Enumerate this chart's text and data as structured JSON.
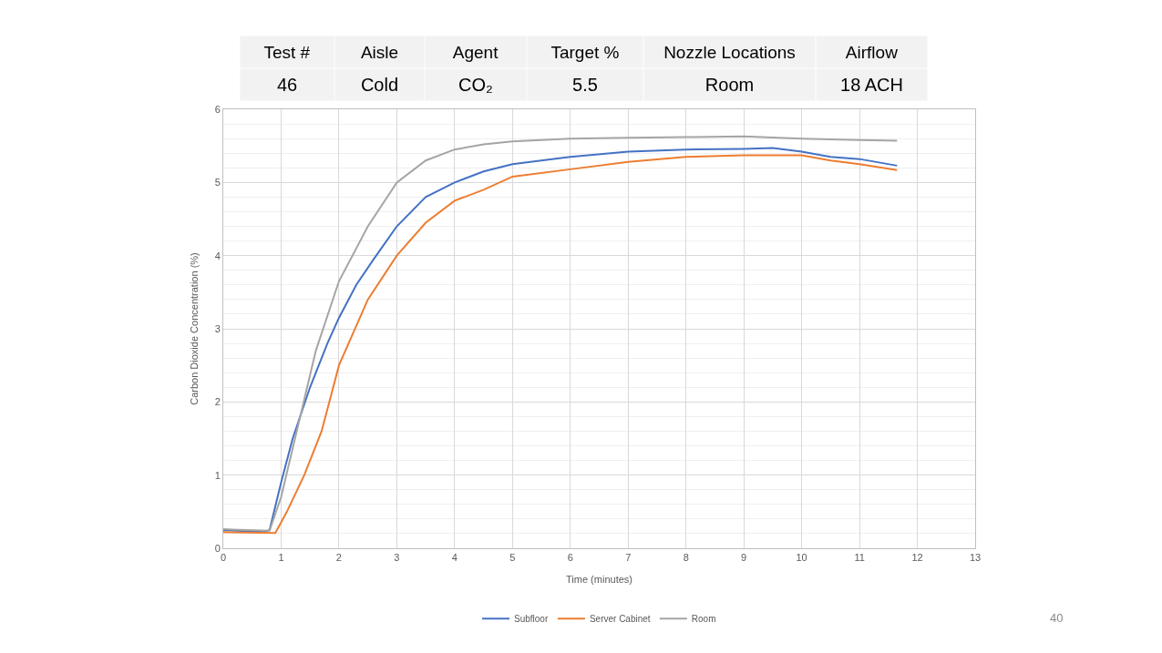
{
  "chart_data": {
    "type": "line",
    "xlabel": "Time (minutes)",
    "ylabel": "Carbon Dioxide Concentration (%)",
    "xlim": [
      0,
      13
    ],
    "xticks": [
      0,
      1,
      2,
      3,
      4,
      5,
      6,
      7,
      8,
      9,
      10,
      11,
      12,
      13
    ],
    "ylim": [
      0,
      6
    ],
    "yticks": [
      0,
      1,
      2,
      3,
      4,
      5,
      6
    ],
    "grid": true,
    "legend": "bottom",
    "marker": "none",
    "line_style": "solid",
    "annotations": [
      "Test #",
      "Aisle",
      "Agent",
      "Target %",
      "Nozzle Locations",
      "Airflow",
      "46",
      "Cold",
      "CO₂",
      "5.5",
      "Room",
      "18 ACH",
      "40"
    ],
    "series": [
      {
        "name": "Subfloor",
        "color": "#4472c4",
        "x": [
          0,
          0.7,
          0.8,
          1.0,
          1.2,
          1.5,
          1.8,
          2.0,
          2.3,
          2.6,
          3.0,
          3.5,
          4.0,
          4.5,
          5,
          6,
          7,
          8,
          9,
          9.5,
          10,
          10.5,
          11,
          11.65
        ],
        "values": [
          0.25,
          0.22,
          0.25,
          0.9,
          1.5,
          2.2,
          2.8,
          3.15,
          3.6,
          3.95,
          4.4,
          4.8,
          5.0,
          5.15,
          5.25,
          5.35,
          5.42,
          5.45,
          5.46,
          5.47,
          5.42,
          5.35,
          5.32,
          5.23
        ]
      },
      {
        "name": "Server Cabinet",
        "color": "#ed7d31",
        "x": [
          0,
          0.9,
          1.1,
          1.4,
          1.7,
          2.0,
          2.5,
          3.0,
          3.5,
          4.0,
          4.5,
          5,
          6,
          7,
          8,
          9,
          10,
          10.5,
          11,
          11.65
        ],
        "values": [
          0.22,
          0.21,
          0.5,
          1.0,
          1.6,
          2.5,
          3.4,
          4.0,
          4.45,
          4.75,
          4.9,
          5.08,
          5.18,
          5.28,
          5.35,
          5.37,
          5.37,
          5.3,
          5.25,
          5.17
        ]
      },
      {
        "name": "Room",
        "color": "#a5a5a5",
        "x": [
          0,
          0.8,
          1.0,
          1.3,
          1.6,
          2.0,
          2.5,
          3.0,
          3.5,
          4.0,
          4.5,
          5,
          6,
          7,
          8,
          9,
          10,
          11,
          11.65
        ],
        "values": [
          0.26,
          0.24,
          0.7,
          1.7,
          2.7,
          3.65,
          4.4,
          5.0,
          5.3,
          5.45,
          5.52,
          5.56,
          5.6,
          5.61,
          5.62,
          5.63,
          5.6,
          5.58,
          5.57
        ]
      }
    ]
  }
}
